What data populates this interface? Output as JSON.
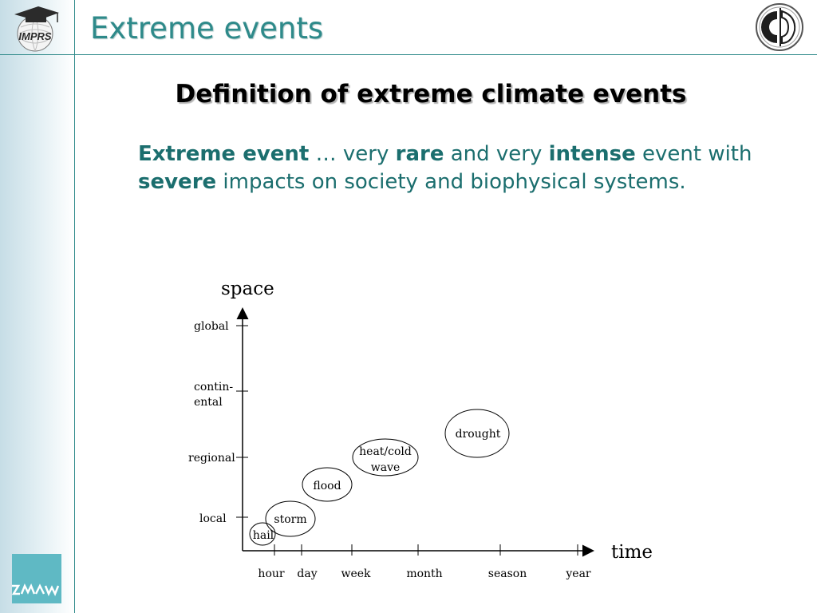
{
  "header": {
    "title": "Extreme events",
    "logo_left_text": "IMPRS"
  },
  "subtitle": "Definition of extreme climate events",
  "definition": {
    "term": "Extreme event",
    "ellipsis": "…",
    "t1": " very ",
    "rare": "rare",
    "t2": " and very ",
    "intense": "intense",
    "t3": " event with ",
    "severe": "severe",
    "t4": " impacts on society and biophysical systems."
  },
  "diagram": {
    "y_axis_label": "space",
    "x_axis_label": "time",
    "space_scales": [
      "global",
      "contin-",
      "ental",
      "regional",
      "local"
    ],
    "time_scales": [
      "hour",
      "day",
      "week",
      "month",
      "season",
      "year"
    ],
    "events": [
      "hail",
      "storm",
      "flood",
      "heat/cold",
      "wave",
      "drought"
    ]
  },
  "colors": {
    "accent": "#2e8a8a",
    "text_teal": "#1b6e6e",
    "logo_bottom": "#5fb9c4"
  }
}
